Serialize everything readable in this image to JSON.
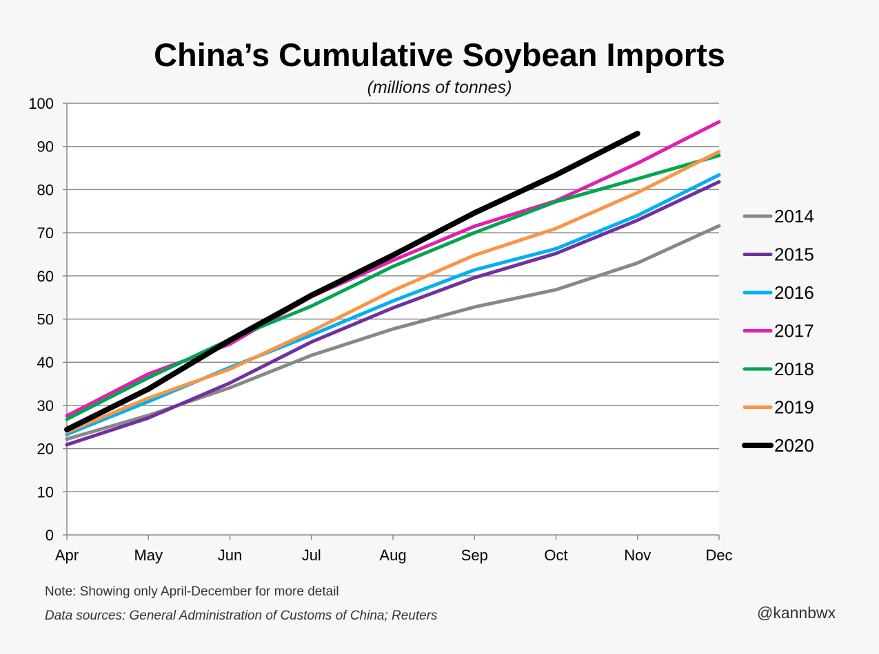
{
  "chart_data": {
    "type": "line",
    "title": "China’s Cumulative Soybean Imports",
    "subtitle": "(millions of tonnes)",
    "categories": [
      "Apr",
      "May",
      "Jun",
      "Jul",
      "Aug",
      "Sep",
      "Oct",
      "Nov",
      "Dec"
    ],
    "ylim": [
      0,
      100
    ],
    "yticks": [
      0,
      10,
      20,
      30,
      40,
      50,
      60,
      70,
      80,
      90,
      100
    ],
    "grid": true,
    "legend_position": "right",
    "series": [
      {
        "name": "2014",
        "color": "#888888",
        "values": [
          22.2,
          27.7,
          34.1,
          41.6,
          47.7,
          52.8,
          56.8,
          63.0,
          71.6
        ]
      },
      {
        "name": "2015",
        "color": "#7030a0",
        "values": [
          20.9,
          27.1,
          35.2,
          44.7,
          52.6,
          59.6,
          65.2,
          72.9,
          81.8
        ]
      },
      {
        "name": "2016",
        "color": "#00b0f0",
        "values": [
          23.3,
          30.9,
          38.8,
          46.3,
          54.2,
          61.4,
          66.3,
          74.0,
          83.4
        ]
      },
      {
        "name": "2017",
        "color": "#e020b0",
        "values": [
          27.6,
          37.3,
          44.2,
          55.2,
          63.6,
          71.5,
          77.4,
          86.1,
          95.7
        ]
      },
      {
        "name": "2018",
        "color": "#00a650",
        "values": [
          26.8,
          36.4,
          45.3,
          53.0,
          62.2,
          70.0,
          77.2,
          82.5,
          87.9
        ]
      },
      {
        "name": "2019",
        "color": "#f79646",
        "values": [
          23.8,
          31.7,
          38.4,
          47.2,
          56.6,
          64.8,
          71.0,
          79.3,
          88.8
        ]
      },
      {
        "name": "2020",
        "color": "#000000",
        "values": [
          24.4,
          33.8,
          45.1,
          55.5,
          64.8,
          74.6,
          83.4,
          93.0,
          null
        ]
      }
    ]
  },
  "footer": {
    "note": "Note: Showing only April-December for more detail",
    "sources": "Data sources: General Administration of Customs of China; Reuters",
    "handle": "@kannbwx"
  }
}
